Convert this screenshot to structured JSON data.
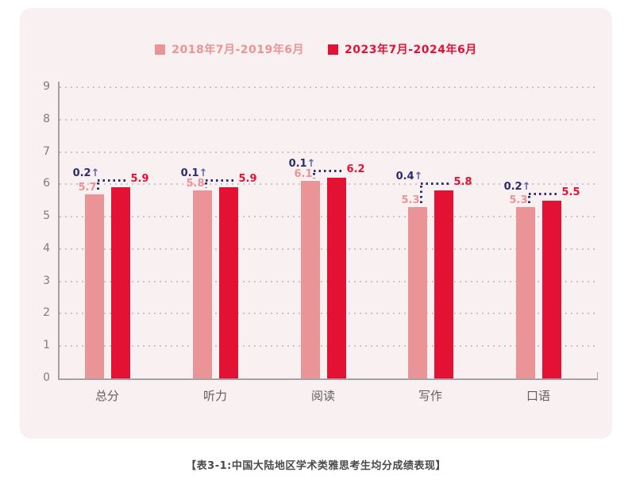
{
  "colors": {
    "page_bg": "#ffffff",
    "panel_bg": "#f9f0f2",
    "pink": "#EB9497",
    "red": "#E31235",
    "annotation_navy": "#2D2D6B",
    "arrow_blue": "#6466AE",
    "grid_dot": "#cfc2c5",
    "axis": "#a3a3a3",
    "tick_label": "#7d7d7d",
    "category_label": "#606060",
    "caption_color": "#4a4a4a"
  },
  "legend": {
    "items": [
      {
        "label": "2018年7月-2019年6月",
        "color": "#EB9497"
      },
      {
        "label": "2023年7月-2024年6月",
        "color": "#E31235"
      }
    ]
  },
  "chart_data": {
    "type": "bar",
    "title": "",
    "categories": [
      "总分",
      "听力",
      "阅读",
      "写作",
      "口语"
    ],
    "series": [
      {
        "name": "2018年7月-2019年6月",
        "color": "#EB9497",
        "values": [
          5.7,
          5.8,
          6.1,
          5.3,
          5.3
        ]
      },
      {
        "name": "2023年7月-2024年6月",
        "color": "#E31235",
        "values": [
          5.9,
          5.9,
          6.2,
          5.8,
          5.5
        ]
      }
    ],
    "diff_labels": [
      "0.2",
      "0.1",
      "0.1",
      "0.4",
      "0.2"
    ],
    "diff_arrow": "↑",
    "ylim": [
      0,
      9
    ],
    "yticks": [
      0,
      1,
      2,
      3,
      4,
      5,
      6,
      7,
      8,
      9
    ],
    "grid": "horizontal-dotted",
    "legend_position": "top-center",
    "value_labels": "shown-at-bar-tops"
  },
  "caption": "【表3-1:中国大陆地区学术类雅思考生均分成绩表现】"
}
